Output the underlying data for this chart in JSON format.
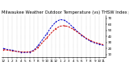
{
  "title": "Milwaukee Weather Outdoor Temperature (vs) THSW Index per Hour (Last 24 Hours)",
  "hours": [
    0,
    1,
    2,
    3,
    4,
    5,
    6,
    7,
    8,
    9,
    10,
    11,
    12,
    13,
    14,
    15,
    16,
    17,
    18,
    19,
    20,
    21,
    22,
    23
  ],
  "hour_labels": [
    "12",
    "1",
    "2",
    "3",
    "4",
    "5",
    "6",
    "7",
    "8",
    "9",
    "10",
    "11",
    "12",
    "1",
    "2",
    "3",
    "4",
    "5",
    "6",
    "7",
    "8",
    "9",
    "10",
    "11"
  ],
  "temp": [
    18,
    17,
    16,
    15,
    14,
    14,
    14,
    16,
    22,
    30,
    38,
    46,
    53,
    57,
    58,
    56,
    52,
    47,
    42,
    37,
    33,
    30,
    28,
    26
  ],
  "thsw": [
    20,
    18,
    17,
    15,
    14,
    13,
    14,
    17,
    25,
    35,
    45,
    56,
    64,
    68,
    67,
    62,
    55,
    48,
    42,
    36,
    32,
    29,
    27,
    25
  ],
  "temp_color": "#cc0000",
  "thsw_color": "#0000cc",
  "background_color": "#ffffff",
  "grid_color": "#888888",
  "ylim": [
    5,
    75
  ],
  "yticks": [
    10,
    20,
    30,
    40,
    50,
    60,
    70
  ],
  "ytick_labels": [
    "10",
    "20",
    "30",
    "40",
    "50",
    "60",
    "70"
  ],
  "title_fontsize": 3.8,
  "tick_fontsize": 3.0,
  "linewidth": 0.7
}
